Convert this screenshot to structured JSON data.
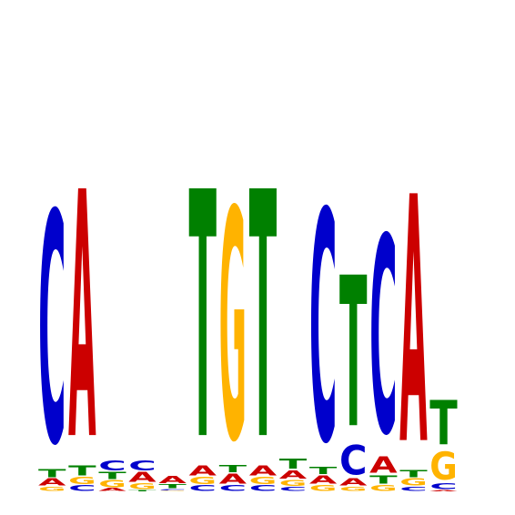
{
  "colors": {
    "A": "#cc0000",
    "C": "#0000cc",
    "G": "#ffb300",
    "T": "#008000"
  },
  "chart_data": {
    "type": "sequence-logo",
    "alphabet": [
      "A",
      "C",
      "G",
      "T"
    ],
    "ylim": [
      0,
      2
    ],
    "positions": [
      [
        [
          "G",
          0.03
        ],
        [
          "A",
          0.05
        ],
        [
          "T",
          0.06
        ],
        [
          "C",
          1.65
        ]
      ],
      [
        [
          "C",
          0.04
        ],
        [
          "G",
          0.05
        ],
        [
          "T",
          0.07
        ],
        [
          "A",
          1.77
        ]
      ],
      [
        [
          "A",
          0.02
        ],
        [
          "G",
          0.05
        ],
        [
          "T",
          0.05
        ],
        [
          "C",
          0.07
        ]
      ],
      [
        [
          "T",
          0.01
        ],
        [
          "G",
          0.04
        ],
        [
          "A",
          0.07
        ],
        [
          "C",
          0.07
        ]
      ],
      [
        [
          "G",
          0.005
        ],
        [
          "C",
          0.01
        ],
        [
          "T",
          0.03
        ],
        [
          "A",
          0.05
        ]
      ],
      [
        [
          "C",
          0.04
        ],
        [
          "G",
          0.05
        ],
        [
          "A",
          0.07
        ],
        [
          "T",
          1.77
        ]
      ],
      [
        [
          "C",
          0.04
        ],
        [
          "A",
          0.07
        ],
        [
          "T",
          0.05
        ],
        [
          "G",
          1.65
        ]
      ],
      [
        [
          "C",
          0.04
        ],
        [
          "G",
          0.05
        ],
        [
          "A",
          0.07
        ],
        [
          "T",
          1.77
        ]
      ],
      [
        [
          "C",
          0.03
        ],
        [
          "G",
          0.04
        ],
        [
          "A",
          0.06
        ],
        [
          "T",
          0.07
        ]
      ],
      [
        [
          "G",
          0.04
        ],
        [
          "A",
          0.06
        ],
        [
          "T",
          0.05
        ],
        [
          "C",
          1.65
        ]
      ],
      [
        [
          "G",
          0.03
        ],
        [
          "A",
          0.05
        ],
        [
          "C",
          0.21
        ],
        [
          "T",
          1.08
        ]
      ],
      [
        [
          "G",
          0.04
        ],
        [
          "T",
          0.06
        ],
        [
          "A",
          0.12
        ],
        [
          "C",
          1.41
        ]
      ],
      [
        [
          "C",
          0.03
        ],
        [
          "G",
          0.05
        ],
        [
          "T",
          0.05
        ],
        [
          "A",
          1.77
        ]
      ],
      [
        [
          "A",
          0.01
        ],
        [
          "C",
          0.04
        ],
        [
          "G",
          0.2
        ],
        [
          "T",
          0.32
        ]
      ]
    ]
  }
}
